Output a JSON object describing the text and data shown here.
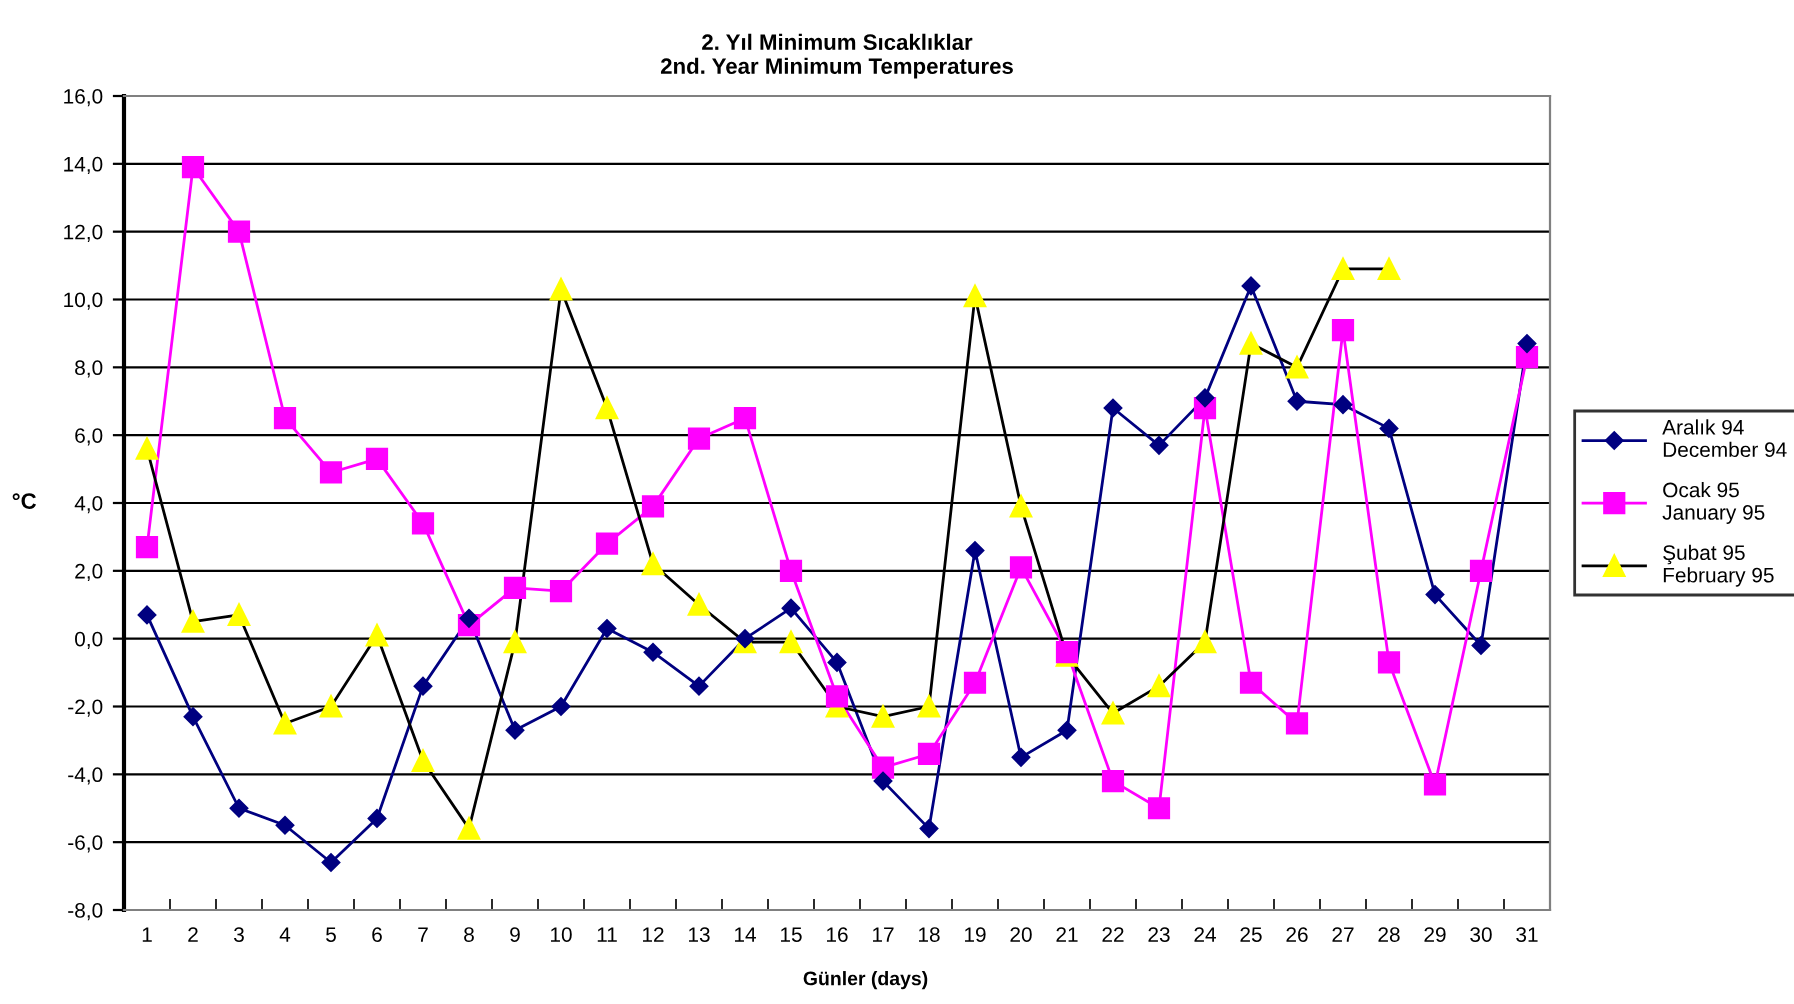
{
  "chart_data": {
    "type": "line",
    "title": "2. Yıl Minimum Sıcaklıklar\n2nd. Year Minimum Temperatures",
    "xlabel": "Günler (days)",
    "ylabel": "°C",
    "categories": [
      "1",
      "2",
      "3",
      "4",
      "5",
      "6",
      "7",
      "8",
      "9",
      "10",
      "11",
      "12",
      "13",
      "14",
      "15",
      "16",
      "17",
      "18",
      "19",
      "20",
      "21",
      "22",
      "23",
      "24",
      "25",
      "26",
      "27",
      "28",
      "29",
      "30",
      "31"
    ],
    "ylim": [
      -8,
      16
    ],
    "yticks": [
      {
        "value": -8,
        "label": "-8,0"
      },
      {
        "value": -6,
        "label": "-6,0"
      },
      {
        "value": -4,
        "label": "-4,0"
      },
      {
        "value": -2,
        "label": "-2,0"
      },
      {
        "value": 0,
        "label": "0,0"
      },
      {
        "value": 2,
        "label": "2,0"
      },
      {
        "value": 4,
        "label": "4,0"
      },
      {
        "value": 6,
        "label": "6,0"
      },
      {
        "value": 8,
        "label": "8,0"
      },
      {
        "value": 10,
        "label": "10,0"
      },
      {
        "value": 12,
        "label": "12,0"
      },
      {
        "value": 14,
        "label": "14,0"
      },
      {
        "value": 16,
        "label": "16,0"
      }
    ],
    "grid": "y",
    "legend": "right",
    "series": [
      {
        "name": "Aralık 94\nDecember 94",
        "color": "#000080",
        "marker": "diamond",
        "values": [
          0.7,
          -2.3,
          -5.0,
          -5.5,
          -6.6,
          -5.3,
          -1.4,
          0.6,
          -2.7,
          -2.0,
          0.3,
          -0.4,
          -1.4,
          0.0,
          0.9,
          -0.7,
          -4.2,
          -5.6,
          2.6,
          -3.5,
          -2.7,
          6.8,
          5.7,
          7.1,
          10.4,
          7.0,
          6.9,
          6.2,
          1.3,
          -0.2,
          8.7
        ]
      },
      {
        "name": "Ocak 95\nJanuary 95",
        "color": "#ff00ff",
        "marker": "square",
        "values": [
          2.7,
          13.9,
          12.0,
          6.5,
          4.9,
          5.3,
          3.4,
          0.4,
          1.5,
          1.4,
          2.8,
          3.9,
          5.9,
          6.5,
          2.0,
          -1.7,
          -3.8,
          -3.4,
          -1.3,
          2.1,
          -0.4,
          -4.2,
          -5.0,
          6.8,
          -1.3,
          -2.5,
          9.1,
          -0.7,
          -4.3,
          2.0,
          8.3
        ]
      },
      {
        "name": "Şubat 95\nFebruary 95",
        "color": "#ffff00",
        "marker": "triangle",
        "values": [
          5.6,
          0.5,
          0.7,
          -2.5,
          -2.0,
          0.1,
          -3.6,
          -5.6,
          -0.1,
          10.3,
          6.8,
          2.2,
          1.0,
          -0.1,
          -0.1,
          -2.0,
          -2.3,
          -2.0,
          10.1,
          3.9,
          -0.5,
          -2.2,
          -1.4,
          -0.1,
          8.7,
          8.0,
          10.9,
          10.9,
          null,
          null,
          null
        ]
      }
    ]
  }
}
